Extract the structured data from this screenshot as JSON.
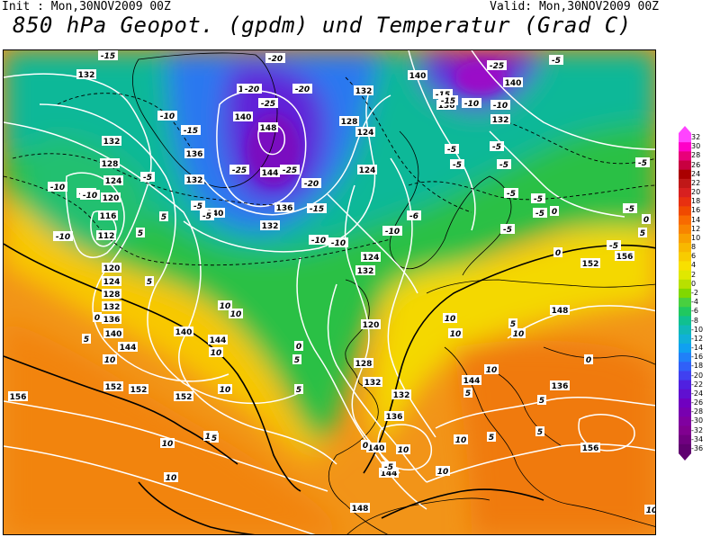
{
  "header": {
    "init": "Init : Mon,30NOV2009 00Z",
    "valid": "Valid: Mon,30NOV2009 00Z",
    "title": "850 hPa Geopot. (gpdm) und Temperatur (Grad C)"
  },
  "legend": {
    "labels": [
      "32",
      "30",
      "28",
      "26",
      "24",
      "22",
      "20",
      "18",
      "16",
      "14",
      "12",
      "10",
      "8",
      "6",
      "4",
      "2",
      "0",
      "-2",
      "-4",
      "-6",
      "-8",
      "-10",
      "-12",
      "-14",
      "-16",
      "-18",
      "-20",
      "-22",
      "-24",
      "-26",
      "-28",
      "-30",
      "-32",
      "-34",
      "-36"
    ],
    "colors": [
      "#ff44ff",
      "#ff00c8",
      "#e8007a",
      "#c80040",
      "#aa0000",
      "#c01818",
      "#d82020",
      "#e83010",
      "#f04a00",
      "#f86a00",
      "#f88400",
      "#f8a000",
      "#f8b800",
      "#f8cc00",
      "#f8e000",
      "#e0e800",
      "#b8e000",
      "#80d800",
      "#48d040",
      "#20c860",
      "#10c090",
      "#10b8b8",
      "#10b0d8",
      "#10a0f0",
      "#2080f8",
      "#3060f8",
      "#4040f0",
      "#5020e0",
      "#6010d0",
      "#7000c0",
      "#7800b0",
      "#8000a0",
      "#800090",
      "#700080",
      "#600070"
    ]
  },
  "map": {
    "geopotential_labels": [
      {
        "text": "132"
      },
      {
        "text": "132"
      },
      {
        "text": "128"
      },
      {
        "text": "124"
      },
      {
        "text": "120"
      },
      {
        "text": "116"
      },
      {
        "text": "112"
      },
      {
        "text": "120"
      },
      {
        "text": "124"
      },
      {
        "text": "128"
      },
      {
        "text": "132"
      },
      {
        "text": "136"
      },
      {
        "text": "140"
      },
      {
        "text": "144"
      },
      {
        "text": "144"
      },
      {
        "text": "140"
      },
      {
        "text": "148"
      },
      {
        "text": "144"
      },
      {
        "text": "140"
      },
      {
        "text": "136"
      },
      {
        "text": "132"
      },
      {
        "text": "136"
      },
      {
        "text": "132"
      },
      {
        "text": "128"
      },
      {
        "text": "124"
      },
      {
        "text": "124"
      },
      {
        "text": "132"
      },
      {
        "text": "140"
      },
      {
        "text": "136"
      },
      {
        "text": "132"
      },
      {
        "text": "140"
      },
      {
        "text": "132"
      },
      {
        "text": "124"
      },
      {
        "text": "120"
      },
      {
        "text": "128"
      },
      {
        "text": "132"
      },
      {
        "text": "132"
      },
      {
        "text": "136"
      },
      {
        "text": "140"
      },
      {
        "text": "144"
      },
      {
        "text": "148"
      },
      {
        "text": "152"
      },
      {
        "text": "156"
      },
      {
        "text": "148"
      },
      {
        "text": "144"
      },
      {
        "text": "152"
      },
      {
        "text": "156"
      },
      {
        "text": "152"
      },
      {
        "text": "152"
      },
      {
        "text": "156"
      },
      {
        "text": "136"
      },
      {
        "text": "144"
      },
      {
        "text": "140"
      }
    ],
    "temperature_labels": [
      {
        "text": "-15"
      },
      {
        "text": "-20"
      },
      {
        "text": "-20"
      },
      {
        "text": "-25"
      },
      {
        "text": "-20"
      },
      {
        "text": "-25"
      },
      {
        "text": "-25"
      },
      {
        "text": "-20"
      },
      {
        "text": "-15"
      },
      {
        "text": "-10"
      },
      {
        "text": "-15"
      },
      {
        "text": "-10"
      },
      {
        "text": "-10"
      },
      {
        "text": "-5"
      },
      {
        "text": "-10"
      },
      {
        "text": "-10"
      },
      {
        "text": "-5"
      },
      {
        "text": "-5"
      },
      {
        "text": "-10"
      },
      {
        "text": "-10"
      },
      {
        "text": "-5"
      },
      {
        "text": "-5"
      },
      {
        "text": "-5"
      },
      {
        "text": "-10"
      },
      {
        "text": "-6"
      },
      {
        "text": "-10"
      },
      {
        "text": "-25"
      },
      {
        "text": "-15"
      },
      {
        "text": "-10"
      },
      {
        "text": "-15"
      },
      {
        "text": "-5"
      },
      {
        "text": "-5"
      },
      {
        "text": "-5"
      },
      {
        "text": "-5"
      },
      {
        "text": "-5"
      },
      {
        "text": "-5"
      },
      {
        "text": "-5"
      },
      {
        "text": "5"
      },
      {
        "text": "0"
      },
      {
        "text": "0"
      },
      {
        "text": "5"
      },
      {
        "text": "10"
      },
      {
        "text": "10"
      },
      {
        "text": "10"
      },
      {
        "text": "5"
      },
      {
        "text": "5"
      },
      {
        "text": "0"
      },
      {
        "text": "0"
      },
      {
        "text": "5"
      },
      {
        "text": "10"
      },
      {
        "text": "10"
      },
      {
        "text": "10"
      },
      {
        "text": "5"
      },
      {
        "text": "0"
      },
      {
        "text": "5"
      },
      {
        "text": "10"
      },
      {
        "text": "5"
      },
      {
        "text": "10"
      },
      {
        "text": "10"
      },
      {
        "text": "10"
      },
      {
        "text": "10"
      },
      {
        "text": "5"
      },
      {
        "text": "5"
      },
      {
        "text": "0"
      },
      {
        "text": "5"
      },
      {
        "text": "-5"
      },
      {
        "text": "10"
      },
      {
        "text": "10"
      },
      {
        "text": "10"
      },
      {
        "text": "0"
      },
      {
        "text": "10"
      },
      {
        "text": "5"
      },
      {
        "text": "10"
      },
      {
        "text": "5"
      },
      {
        "text": "-5"
      },
      {
        "text": "-5"
      }
    ]
  }
}
